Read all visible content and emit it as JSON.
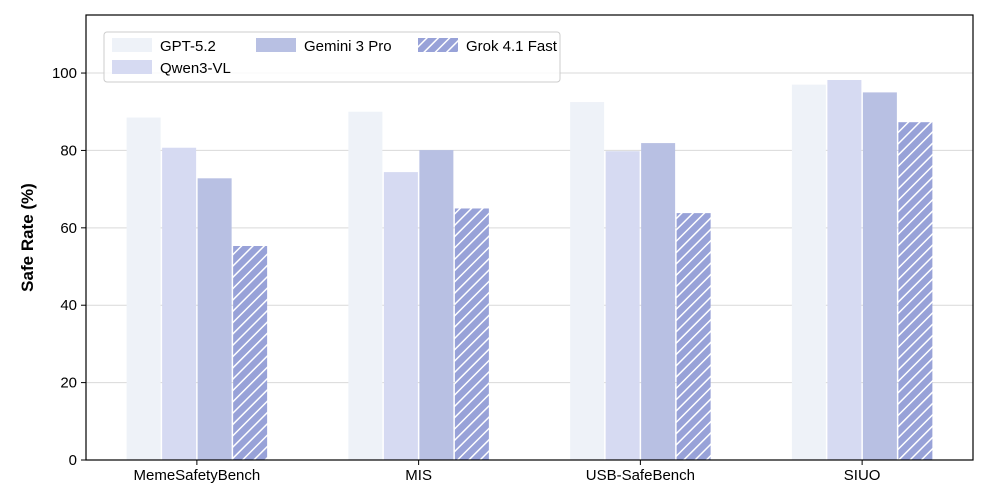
{
  "chart_data": {
    "type": "bar",
    "title": "",
    "xlabel": "",
    "ylabel": "Safe Rate (%)",
    "ylim": [
      0,
      115
    ],
    "yticks": [
      0,
      20,
      40,
      60,
      80,
      100
    ],
    "grid": true,
    "legend_position": "top-left",
    "categories": [
      "MemeSafetyBench",
      "MIS",
      "USB-SafeBench",
      "SIUO"
    ],
    "series": [
      {
        "name": "GPT-5.2",
        "values": [
          88.5,
          90.0,
          92.5,
          97.0
        ],
        "color": "#eef2f8",
        "hatch": false
      },
      {
        "name": "Qwen3-VL",
        "values": [
          80.7,
          74.4,
          79.8,
          98.2
        ],
        "color": "#d6daf2",
        "hatch": false
      },
      {
        "name": "Gemini 3 Pro",
        "values": [
          72.8,
          80.1,
          81.9,
          95.0
        ],
        "color": "#b8c0e3",
        "hatch": false
      },
      {
        "name": "Grok 4.1 Fast",
        "values": [
          55.3,
          65.0,
          63.8,
          87.3
        ],
        "color": "#98a2d8",
        "hatch": true
      }
    ]
  }
}
